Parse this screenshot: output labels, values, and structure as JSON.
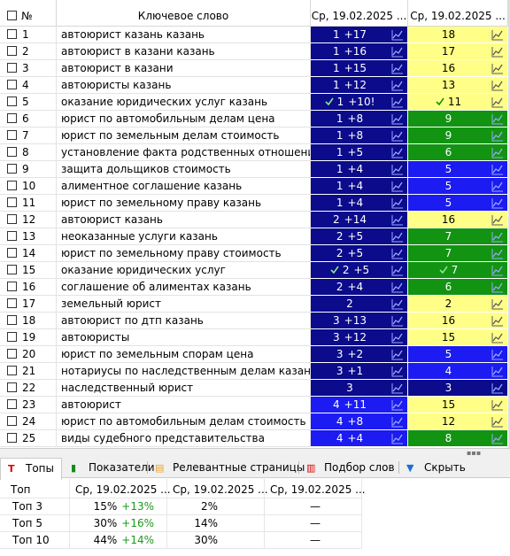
{
  "table": {
    "headers": [
      "№",
      "Ключевое слово",
      "Ср, 19.02.2025 ...",
      "Ср, 19.02.2025 ..."
    ],
    "rows": [
      {
        "n": "1",
        "keyword": "автоюрист казань казань",
        "pos1": "1",
        "change1": "+17",
        "pos2": "18",
        "bg1": "#0b0b8c",
        "bg2": "#ffff88"
      },
      {
        "n": "2",
        "keyword": "автоюрист в казани казань",
        "pos1": "1",
        "change1": "+16",
        "pos2": "17",
        "bg1": "#0b0b8c",
        "bg2": "#ffff88"
      },
      {
        "n": "3",
        "keyword": "автоюрист в казани",
        "pos1": "1",
        "change1": "+15",
        "pos2": "16",
        "bg1": "#0b0b8c",
        "bg2": "#ffff88"
      },
      {
        "n": "4",
        "keyword": "автоюристы казань",
        "pos1": "1",
        "change1": "+12",
        "pos2": "13",
        "bg1": "#0b0b8c",
        "bg2": "#ffff88"
      },
      {
        "n": "5",
        "keyword": "оказание юридических услуг казань",
        "pos1": "1",
        "change1": "+10!",
        "pos2": "11",
        "bg1": "#0b0b8c",
        "bg2": "#ffff88",
        "check": true
      },
      {
        "n": "6",
        "keyword": "юрист по автомобильным делам цена",
        "pos1": "1",
        "change1": "+8",
        "pos2": "9",
        "bg1": "#0b0b8c",
        "bg2": "#129412"
      },
      {
        "n": "7",
        "keyword": "юрист по земельным делам стоимость",
        "pos1": "1",
        "change1": "+8",
        "pos2": "9",
        "bg1": "#0b0b8c",
        "bg2": "#129412"
      },
      {
        "n": "8",
        "keyword": "установление факта родственных отношени...",
        "pos1": "1",
        "change1": "+5",
        "pos2": "6",
        "bg1": "#0b0b8c",
        "bg2": "#129412"
      },
      {
        "n": "9",
        "keyword": "защита дольщиков стоимость",
        "pos1": "1",
        "change1": "+4",
        "pos2": "5",
        "bg1": "#0b0b8c",
        "bg2": "#1b1bf2"
      },
      {
        "n": "10",
        "keyword": "алиментное соглашение казань",
        "pos1": "1",
        "change1": "+4",
        "pos2": "5",
        "bg1": "#0b0b8c",
        "bg2": "#1b1bf2"
      },
      {
        "n": "11",
        "keyword": "юрист по земельному праву казань",
        "pos1": "1",
        "change1": "+4",
        "pos2": "5",
        "bg1": "#0b0b8c",
        "bg2": "#1b1bf2"
      },
      {
        "n": "12",
        "keyword": "автоюрист казань",
        "pos1": "2",
        "change1": "+14",
        "pos2": "16",
        "bg1": "#0b0b8c",
        "bg2": "#ffff88"
      },
      {
        "n": "13",
        "keyword": "неоказанные услуги казань",
        "pos1": "2",
        "change1": "+5",
        "pos2": "7",
        "bg1": "#0b0b8c",
        "bg2": "#129412"
      },
      {
        "n": "14",
        "keyword": "юрист по земельному праву стоимость",
        "pos1": "2",
        "change1": "+5",
        "pos2": "7",
        "bg1": "#0b0b8c",
        "bg2": "#129412"
      },
      {
        "n": "15",
        "keyword": "оказание юридических услуг",
        "pos1": "2",
        "change1": "+5",
        "pos2": "7",
        "bg1": "#0b0b8c",
        "bg2": "#129412",
        "check": true
      },
      {
        "n": "16",
        "keyword": "соглашение об алиментах казань",
        "pos1": "2",
        "change1": "+4",
        "pos2": "6",
        "bg1": "#0b0b8c",
        "bg2": "#129412"
      },
      {
        "n": "17",
        "keyword": "земельный юрист",
        "pos1": "2",
        "pos2": "2",
        "bg1": "#0b0b8c",
        "bg2": "#ffff88"
      },
      {
        "n": "18",
        "keyword": "автоюрист по дтп казань",
        "pos1": "3",
        "change1": "+13",
        "pos2": "16",
        "bg1": "#0b0b8c",
        "bg2": "#ffff88"
      },
      {
        "n": "19",
        "keyword": "автоюристы",
        "pos1": "3",
        "change1": "+12",
        "pos2": "15",
        "bg1": "#0b0b8c",
        "bg2": "#ffff88"
      },
      {
        "n": "20",
        "keyword": "юрист по земельным спорам цена",
        "pos1": "3",
        "change1": "+2",
        "pos2": "5",
        "bg1": "#0b0b8c",
        "bg2": "#1b1bf2"
      },
      {
        "n": "21",
        "keyword": "нотариусы по наследственным делам казань",
        "pos1": "3",
        "change1": "+1",
        "pos2": "4",
        "bg1": "#0b0b8c",
        "bg2": "#1b1bf2"
      },
      {
        "n": "22",
        "keyword": "наследственный юрист",
        "pos1": "3",
        "pos2": "3",
        "bg1": "#0b0b8c",
        "bg2": "#0b0b8c"
      },
      {
        "n": "23",
        "keyword": "автоюрист",
        "pos1": "4",
        "change1": "+11",
        "pos2": "15",
        "bg1": "#1b1bf2",
        "bg2": "#ffff88"
      },
      {
        "n": "24",
        "keyword": "юрист по автомобильным делам стоимость",
        "pos1": "4",
        "change1": "+8",
        "pos2": "12",
        "bg1": "#1b1bf2",
        "bg2": "#ffff88"
      },
      {
        "n": "25",
        "keyword": "виды судебного представительства",
        "pos1": "4",
        "change1": "+4",
        "pos2": "8",
        "bg1": "#1b1bf2",
        "bg2": "#129412"
      }
    ]
  },
  "tabs": [
    "Топы",
    "Показатели",
    "Релевантные страницы",
    "Подбор слов",
    "Скрыть"
  ],
  "summary": {
    "headers": [
      "Топ",
      "Ср, 19.02.2025 ...",
      "Ср, 19.02.2025 ...",
      "Ср, 19.02.2025 ..."
    ],
    "rows": [
      {
        "label": "Топ 3",
        "v1": "15%",
        "d1": "+13%",
        "v2": "2%",
        "v3": "—"
      },
      {
        "label": "Топ 5",
        "v1": "30%",
        "d1": "+16%",
        "v2": "14%",
        "v3": "—"
      },
      {
        "label": "Топ 10",
        "v1": "44%",
        "d1": "+14%",
        "v2": "30%",
        "v3": "—"
      }
    ]
  }
}
